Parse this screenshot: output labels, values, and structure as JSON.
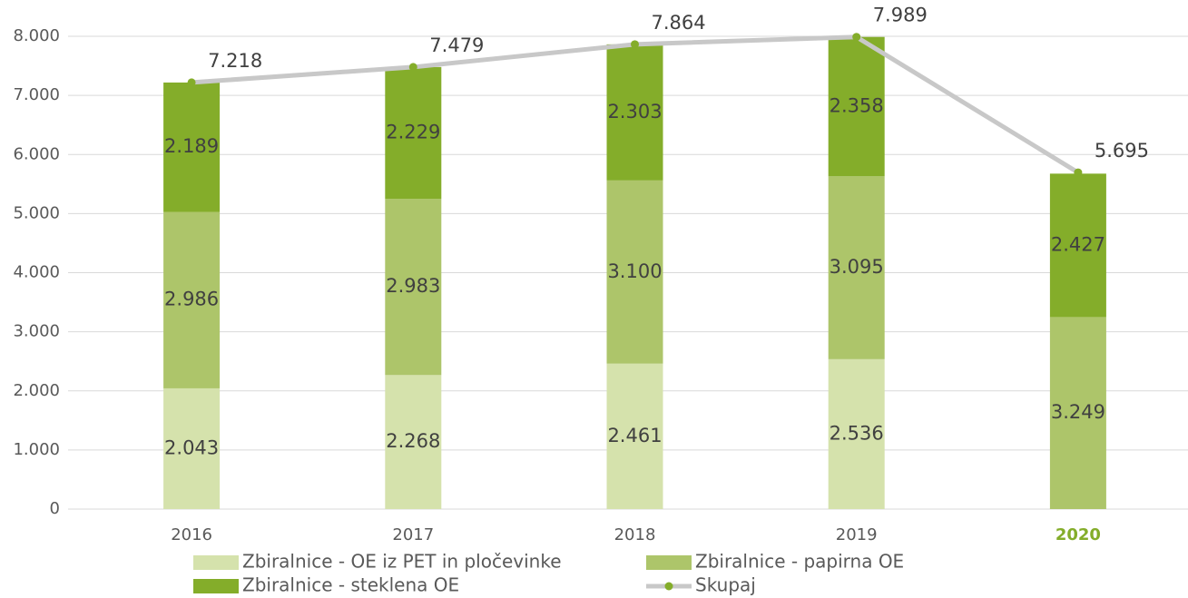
{
  "chart_data": {
    "type": "bar",
    "stacked": true,
    "categories": [
      "2016",
      "2017",
      "2018",
      "2019",
      "2020"
    ],
    "highlight_index": 4,
    "highlight_color": "#84ad2a",
    "series": [
      {
        "name": "Zbiralnice - OE iz PET in pločevinke",
        "type": "bar",
        "color": "#d5e2ac",
        "values": [
          2043,
          2268,
          2461,
          2536,
          null
        ],
        "value_labels": [
          "2.043",
          "2.268",
          "2.461",
          "2.536",
          null
        ]
      },
      {
        "name": "Zbiralnice - papirna OE",
        "type": "bar",
        "color": "#adc56a",
        "values": [
          2986,
          2983,
          3100,
          3095,
          3249
        ],
        "value_labels": [
          "2.986",
          "2.983",
          "3.100",
          "3.095",
          "3.249"
        ]
      },
      {
        "name": "Zbiralnice - steklena OE",
        "type": "bar",
        "color": "#84ad2a",
        "values": [
          2189,
          2229,
          2303,
          2358,
          2427
        ],
        "value_labels": [
          "2.189",
          "2.229",
          "2.303",
          "2.358",
          "2.427"
        ]
      },
      {
        "name": "Skupaj",
        "type": "line",
        "color": "#c8c8c8",
        "marker_color": "#84ad2a",
        "values": [
          7218,
          7479,
          7864,
          7989,
          5695
        ],
        "value_labels": [
          "7.218",
          "7.479",
          "7.864",
          "7.989",
          "5.695"
        ]
      }
    ],
    "ylim": [
      0,
      8000
    ],
    "yticks": [
      0,
      {
        "value": 1000,
        "label": "1.000"
      },
      {
        "value": 2000,
        "label": "2.000"
      },
      {
        "value": 3000,
        "label": "3.000"
      },
      {
        "value": 4000,
        "label": "4.000"
      },
      {
        "value": 5000,
        "label": "5.000"
      },
      {
        "value": 6000,
        "label": "6.000"
      },
      {
        "value": 7000,
        "label": "7.000"
      },
      {
        "value": 8000,
        "label": "8.000"
      }
    ],
    "grid": true,
    "legend": "bottom"
  }
}
